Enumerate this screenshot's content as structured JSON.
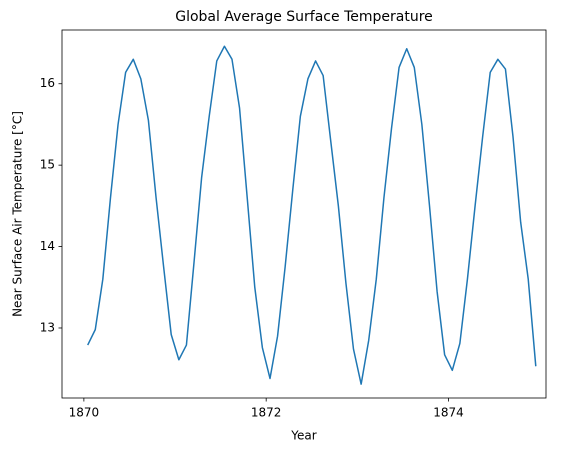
{
  "chart_data": {
    "type": "line",
    "title": "Global Average Surface Temperature",
    "xlabel": "Year",
    "ylabel": "Near Surface Air Temperature [°C]",
    "x": [
      1870.042,
      1870.125,
      1870.208,
      1870.292,
      1870.375,
      1870.458,
      1870.542,
      1870.625,
      1870.708,
      1870.792,
      1870.875,
      1870.958,
      1871.042,
      1871.125,
      1871.208,
      1871.292,
      1871.375,
      1871.458,
      1871.542,
      1871.625,
      1871.708,
      1871.792,
      1871.875,
      1871.958,
      1872.042,
      1872.125,
      1872.208,
      1872.292,
      1872.375,
      1872.458,
      1872.542,
      1872.625,
      1872.708,
      1872.792,
      1872.875,
      1872.958,
      1873.042,
      1873.125,
      1873.208,
      1873.292,
      1873.375,
      1873.458,
      1873.542,
      1873.625,
      1873.708,
      1873.792,
      1873.875,
      1873.958,
      1874.042,
      1874.125,
      1874.208,
      1874.292,
      1874.375,
      1874.458,
      1874.542,
      1874.625,
      1874.708,
      1874.792,
      1874.875,
      1874.958
    ],
    "values": [
      12.79,
      12.98,
      13.6,
      14.6,
      15.5,
      16.14,
      16.3,
      16.06,
      15.55,
      14.6,
      13.75,
      12.92,
      12.61,
      12.79,
      13.8,
      14.85,
      15.6,
      16.28,
      16.46,
      16.3,
      15.7,
      14.6,
      13.5,
      12.76,
      12.38,
      12.9,
      13.75,
      14.7,
      15.6,
      16.06,
      16.28,
      16.1,
      15.3,
      14.5,
      13.55,
      12.74,
      12.31,
      12.85,
      13.6,
      14.6,
      15.45,
      16.2,
      16.43,
      16.2,
      15.5,
      14.5,
      13.45,
      12.67,
      12.48,
      12.81,
      13.6,
      14.5,
      15.35,
      16.14,
      16.3,
      16.18,
      15.35,
      14.3,
      13.6,
      12.53
    ],
    "color": "#1f77b4",
    "xlim": [
      1869.76,
      1875.07
    ],
    "xticks": [
      1870,
      1872,
      1874
    ],
    "ylim": [
      12.14,
      16.66
    ],
    "yticks": [
      13,
      14,
      15,
      16
    ],
    "grid": false
  }
}
